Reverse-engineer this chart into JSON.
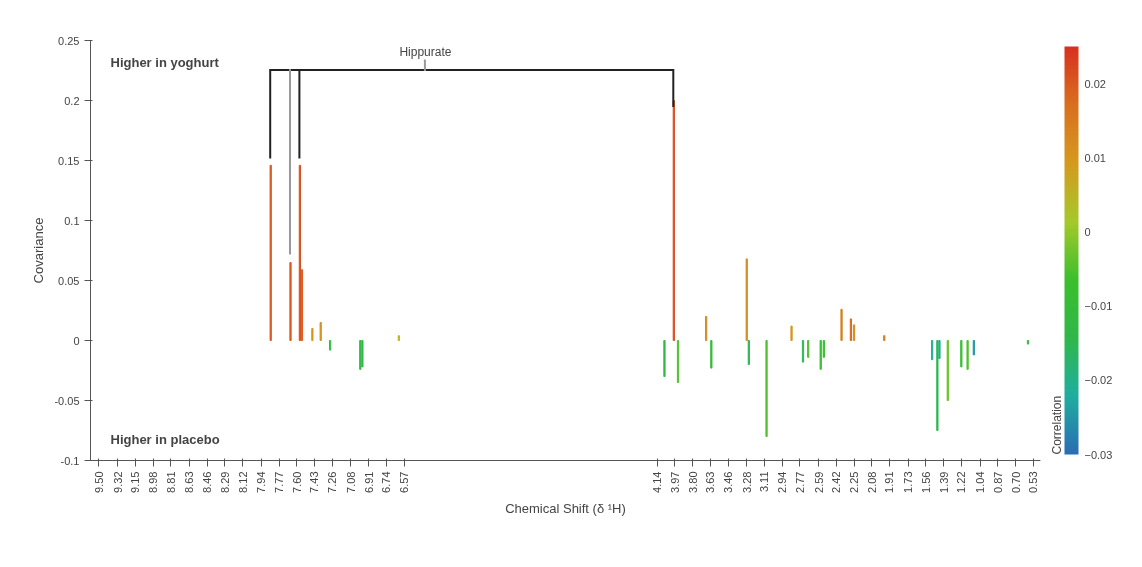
{
  "chart_data": {
    "type": "bar",
    "xlabel": "Chemical Shift (δ ¹H)",
    "ylabel": "Covariance",
    "clabel": "Correlation",
    "annotations": [
      "Higher in yoghurt",
      "Higher in placebo",
      "Hippurate"
    ],
    "x": [
      7.85,
      7.66,
      7.57,
      7.55,
      7.45,
      7.37,
      7.28,
      6.99,
      6.97,
      6.62,
      4.07,
      3.98,
      3.94,
      3.67,
      3.62,
      3.28,
      3.26,
      3.09,
      2.85,
      2.74,
      2.69,
      2.57,
      2.54,
      2.37,
      2.28,
      2.25,
      1.96,
      1.5,
      1.45,
      1.43,
      1.35,
      1.22,
      1.16,
      1.1,
      0.58
    ],
    "values": [
      0.146,
      0.065,
      0.146,
      0.059,
      0.01,
      0.015,
      -0.008,
      -0.024,
      -0.022,
      0.004,
      -0.03,
      0.2,
      -0.035,
      0.02,
      -0.023,
      0.068,
      -0.02,
      -0.08,
      0.012,
      -0.018,
      -0.014,
      -0.024,
      -0.014,
      0.026,
      0.018,
      0.013,
      0.004,
      -0.016,
      -0.075,
      -0.015,
      -0.05,
      -0.022,
      -0.024,
      -0.012,
      -0.003
    ],
    "cvalues": [
      0.02,
      0.02,
      0.021,
      0.02,
      0.01,
      0.011,
      -0.012,
      -0.012,
      -0.012,
      0.005,
      -0.012,
      0.021,
      -0.005,
      0.012,
      -0.01,
      0.012,
      -0.015,
      -0.005,
      0.01,
      -0.015,
      -0.005,
      -0.008,
      -0.008,
      0.014,
      0.018,
      0.012,
      0.015,
      -0.022,
      -0.015,
      -0.02,
      -0.003,
      -0.008,
      -0.005,
      -0.025,
      -0.01
    ],
    "xlim": [
      9.58,
      0.46
    ],
    "xticks": [
      {
        "value": 9.5,
        "label": "9.50"
      },
      9.32,
      9.15,
      8.98,
      8.81,
      8.63,
      8.46,
      8.29,
      8.12,
      7.94,
      7.77,
      {
        "value": 7.6,
        "label": "7.60"
      },
      7.43,
      7.26,
      7.08,
      6.91,
      6.74,
      6.57,
      4.14,
      3.97,
      {
        "value": 3.8,
        "label": "3.80"
      },
      3.63,
      3.46,
      3.28,
      3.11,
      2.94,
      2.77,
      2.59,
      2.42,
      2.25,
      2.08,
      1.91,
      1.73,
      1.56,
      1.39,
      1.22,
      1.04,
      0.87,
      {
        "value": 0.7,
        "label": "0.70"
      },
      0.53
    ],
    "ylim": [
      -0.1,
      0.25
    ],
    "yticks": [
      -0.1,
      -0.05,
      0,
      0.05,
      0.1,
      0.15,
      0.2,
      0.25
    ],
    "clim": [
      -0.03,
      0.025
    ],
    "cticks": [
      -0.03,
      -0.02,
      -0.01,
      0,
      0.01,
      0.02
    ],
    "grid": false
  }
}
